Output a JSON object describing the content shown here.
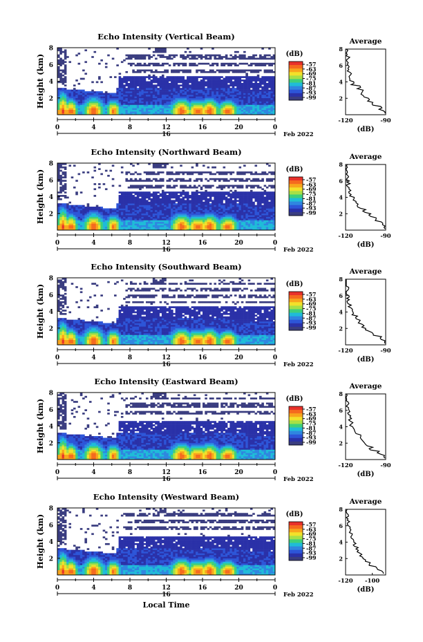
{
  "figure": {
    "shared_xlabel": "Local Time",
    "date_label": "Feb 2022",
    "colorbar_unit": "(dB)",
    "colorbar_ticks": [
      "-57",
      "-63",
      "-69",
      "-75",
      "-81",
      "-87",
      "-93",
      "-99"
    ],
    "colorbar_colors": [
      "#e8312a",
      "#f56a1e",
      "#f8a51c",
      "#f3e12a",
      "#a8e046",
      "#3fd07a",
      "#1fbcd8",
      "#2f86e0",
      "#2d55d8",
      "#2a31a8",
      "#3a3d80"
    ],
    "average_title": "Average",
    "ylabel": "Height (km)"
  },
  "chart_data": [
    {
      "type": "heatmap",
      "title": "Echo Intensity (Vertical Beam)",
      "ylabel": "Height (km)",
      "xlabel": "",
      "x_ticks": [
        "0",
        "4",
        "8",
        "12",
        "16",
        "20",
        "0"
      ],
      "x_mid_label": "16",
      "y_ticks": [
        "2",
        "4",
        "6",
        "8"
      ],
      "xlim": [
        0,
        24
      ],
      "ylim": [
        0,
        8
      ],
      "value_unit": "dB",
      "value_range": [
        -99,
        -57
      ],
      "average_profile": {
        "xlim": [
          -120,
          -90
        ],
        "x_ticks": [
          "-120",
          "-90"
        ],
        "xlabel": "(dB)",
        "y_ticks": [
          "2",
          "4",
          "6",
          "8"
        ],
        "heights": [
          0.5,
          1,
          1.5,
          2,
          2.5,
          3,
          3.5,
          4,
          4.5,
          5,
          5.5,
          6,
          6.5,
          7,
          7.5,
          8
        ],
        "values": [
          -91,
          -94,
          -100,
          -103,
          -107,
          -108,
          -110,
          -115,
          -116,
          -117,
          -118,
          -117,
          -119,
          -118,
          -119,
          -119
        ]
      }
    },
    {
      "type": "heatmap",
      "title": "Echo Intensity (Northward Beam)",
      "ylabel": "Height (km)",
      "xlabel": "",
      "x_ticks": [
        "0",
        "4",
        "8",
        "12",
        "16",
        "20",
        "0"
      ],
      "x_mid_label": "16",
      "y_ticks": [
        "2",
        "4",
        "6",
        "8"
      ],
      "xlim": [
        0,
        24
      ],
      "ylim": [
        0,
        8
      ],
      "value_unit": "dB",
      "value_range": [
        -99,
        -57
      ],
      "average_profile": {
        "xlim": [
          -120,
          -90
        ],
        "x_ticks": [
          "-120",
          "-90"
        ],
        "xlabel": "(dB)",
        "y_ticks": [
          "2",
          "4",
          "6",
          "8"
        ],
        "heights": [
          0.5,
          1,
          1.5,
          2,
          2.5,
          3,
          3.5,
          4,
          4.5,
          5,
          5.5,
          6,
          6.5,
          7,
          7.5,
          8
        ],
        "values": [
          -90,
          -93,
          -98,
          -102,
          -106,
          -110,
          -112,
          -114,
          -116,
          -117,
          -118,
          -118,
          -119,
          -119,
          -120,
          -120
        ]
      }
    },
    {
      "type": "heatmap",
      "title": "Echo Intensity (Southward Beam)",
      "ylabel": "Height (km)",
      "xlabel": "",
      "x_ticks": [
        "0",
        "4",
        "8",
        "12",
        "16",
        "20",
        "0"
      ],
      "x_mid_label": "16",
      "y_ticks": [
        "2",
        "4",
        "6",
        "8"
      ],
      "xlim": [
        0,
        24
      ],
      "ylim": [
        0,
        8
      ],
      "value_unit": "dB",
      "value_range": [
        -99,
        -57
      ],
      "average_profile": {
        "xlim": [
          -120,
          -90
        ],
        "x_ticks": [
          "-120",
          "-90"
        ],
        "xlabel": "(dB)",
        "y_ticks": [
          "2",
          "4",
          "6",
          "8"
        ],
        "heights": [
          0.5,
          1,
          1.5,
          2,
          2.5,
          3,
          3.5,
          4,
          4.5,
          5,
          5.5,
          6,
          6.5,
          7,
          7.5,
          8
        ],
        "values": [
          -90,
          -93,
          -99,
          -104,
          -107,
          -110,
          -112,
          -114,
          -116,
          -117,
          -118,
          -118,
          -119,
          -119,
          -120,
          -120
        ]
      }
    },
    {
      "type": "heatmap",
      "title": "Echo Intensity (Eastward Beam)",
      "ylabel": "Height (km)",
      "xlabel": "",
      "x_ticks": [
        "0",
        "4",
        "8",
        "12",
        "16",
        "20",
        "0"
      ],
      "x_mid_label": "16",
      "y_ticks": [
        "2",
        "4",
        "6",
        "8"
      ],
      "xlim": [
        0,
        24
      ],
      "ylim": [
        0,
        8
      ],
      "value_unit": "dB",
      "value_range": [
        -99,
        -57
      ],
      "average_profile": {
        "xlim": [
          -120,
          -90
        ],
        "x_ticks": [
          "-120",
          "-90"
        ],
        "xlabel": "(dB)",
        "y_ticks": [
          "2",
          "4",
          "6",
          "8"
        ],
        "heights": [
          0.5,
          1,
          1.5,
          2,
          2.5,
          3,
          3.5,
          4,
          4.5,
          5,
          5.5,
          6,
          6.5,
          7,
          7.5,
          8
        ],
        "values": [
          -91,
          -95,
          -101,
          -105,
          -108,
          -110,
          -112,
          -114,
          -116,
          -117,
          -117,
          -118,
          -119,
          -119,
          -120,
          -120
        ]
      }
    },
    {
      "type": "heatmap",
      "title": "Echo Intensity (Westward Beam)",
      "ylabel": "Height (km)",
      "xlabel": "Local Time",
      "x_ticks": [
        "0",
        "4",
        "8",
        "12",
        "16",
        "20",
        "0"
      ],
      "x_mid_label": "16",
      "y_ticks": [
        "2",
        "4",
        "6",
        "8"
      ],
      "xlim": [
        0,
        24
      ],
      "ylim": [
        0,
        8
      ],
      "value_unit": "dB",
      "value_range": [
        -99,
        -57
      ],
      "average_profile": {
        "xlim": [
          -120,
          -90
        ],
        "x_ticks": [
          "-120",
          "-100"
        ],
        "xlabel": "(dB)",
        "y_ticks": [
          "2",
          "4",
          "6",
          "8"
        ],
        "heights": [
          0.5,
          1,
          1.5,
          2,
          2.5,
          3,
          3.5,
          4,
          4.5,
          5,
          5.5,
          6,
          6.5,
          7,
          7.5,
          8
        ],
        "values": [
          -92,
          -96,
          -102,
          -106,
          -108,
          -110,
          -112,
          -113,
          -115,
          -116,
          -117,
          -118,
          -118,
          -119,
          -119,
          -120
        ]
      }
    }
  ]
}
